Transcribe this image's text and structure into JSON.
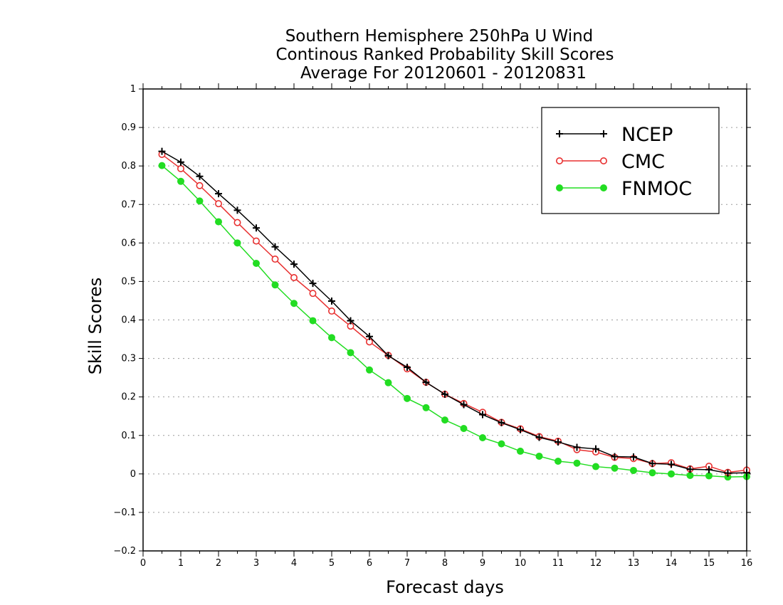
{
  "chart_data": {
    "type": "line",
    "title": [
      "Southern Hemisphere 250hPa U Wind",
      "Continous Ranked Probability Skill Scores",
      "Average For 20120601 - 20120831"
    ],
    "xlabel": "Forecast days",
    "ylabel": "Skill Scores",
    "xlim": [
      0,
      16
    ],
    "ylim": [
      -0.2,
      1
    ],
    "xticks": [
      "0",
      "1",
      "2",
      "3",
      "4",
      "5",
      "6",
      "7",
      "8",
      "9",
      "10",
      "11",
      "12",
      "13",
      "14",
      "15",
      "16"
    ],
    "yticks": [
      "−0.2",
      "−0.1",
      "0",
      "0.1",
      "0.2",
      "0.3",
      "0.4",
      "0.5",
      "0.6",
      "0.7",
      "0.8",
      "0.9",
      "1"
    ],
    "grid": "horizontal-dotted",
    "legend_position": "top-right",
    "x": [
      0.5,
      1,
      1.5,
      2,
      2.5,
      3,
      3.5,
      4,
      4.5,
      5,
      5.5,
      6,
      6.5,
      7,
      7.5,
      8,
      8.5,
      9,
      9.5,
      10,
      10.5,
      11,
      11.5,
      12,
      12.5,
      13,
      13.5,
      14,
      14.5,
      15,
      15.5,
      16
    ],
    "series": [
      {
        "name": "NCEP",
        "color": "#000000",
        "marker": "plus",
        "values": [
          0.838,
          0.81,
          0.773,
          0.728,
          0.685,
          0.639,
          0.59,
          0.545,
          0.495,
          0.449,
          0.398,
          0.357,
          0.307,
          0.277,
          0.238,
          0.207,
          0.18,
          0.154,
          0.133,
          0.115,
          0.095,
          0.083,
          0.069,
          0.065,
          0.045,
          0.044,
          0.027,
          0.025,
          0.012,
          0.011,
          0.002,
          0.003
        ]
      },
      {
        "name": "CMC",
        "color": "#e83030",
        "marker": "open-circle",
        "values": [
          0.83,
          0.793,
          0.749,
          0.702,
          0.653,
          0.605,
          0.558,
          0.51,
          0.469,
          0.423,
          0.384,
          0.343,
          0.308,
          0.273,
          0.238,
          0.207,
          0.183,
          0.16,
          0.134,
          0.117,
          0.097,
          0.085,
          0.063,
          0.057,
          0.043,
          0.04,
          0.027,
          0.029,
          0.013,
          0.02,
          0.004,
          0.01
        ]
      },
      {
        "name": "FNMOC",
        "color": "#22dd22",
        "marker": "filled-circle",
        "values": [
          0.801,
          0.76,
          0.709,
          0.655,
          0.6,
          0.547,
          0.491,
          0.443,
          0.398,
          0.354,
          0.315,
          0.27,
          0.237,
          0.196,
          0.172,
          0.14,
          0.118,
          0.094,
          0.078,
          0.059,
          0.046,
          0.033,
          0.028,
          0.019,
          0.015,
          0.009,
          0.003,
          0.0,
          -0.004,
          -0.005,
          -0.008,
          -0.007
        ]
      }
    ]
  }
}
